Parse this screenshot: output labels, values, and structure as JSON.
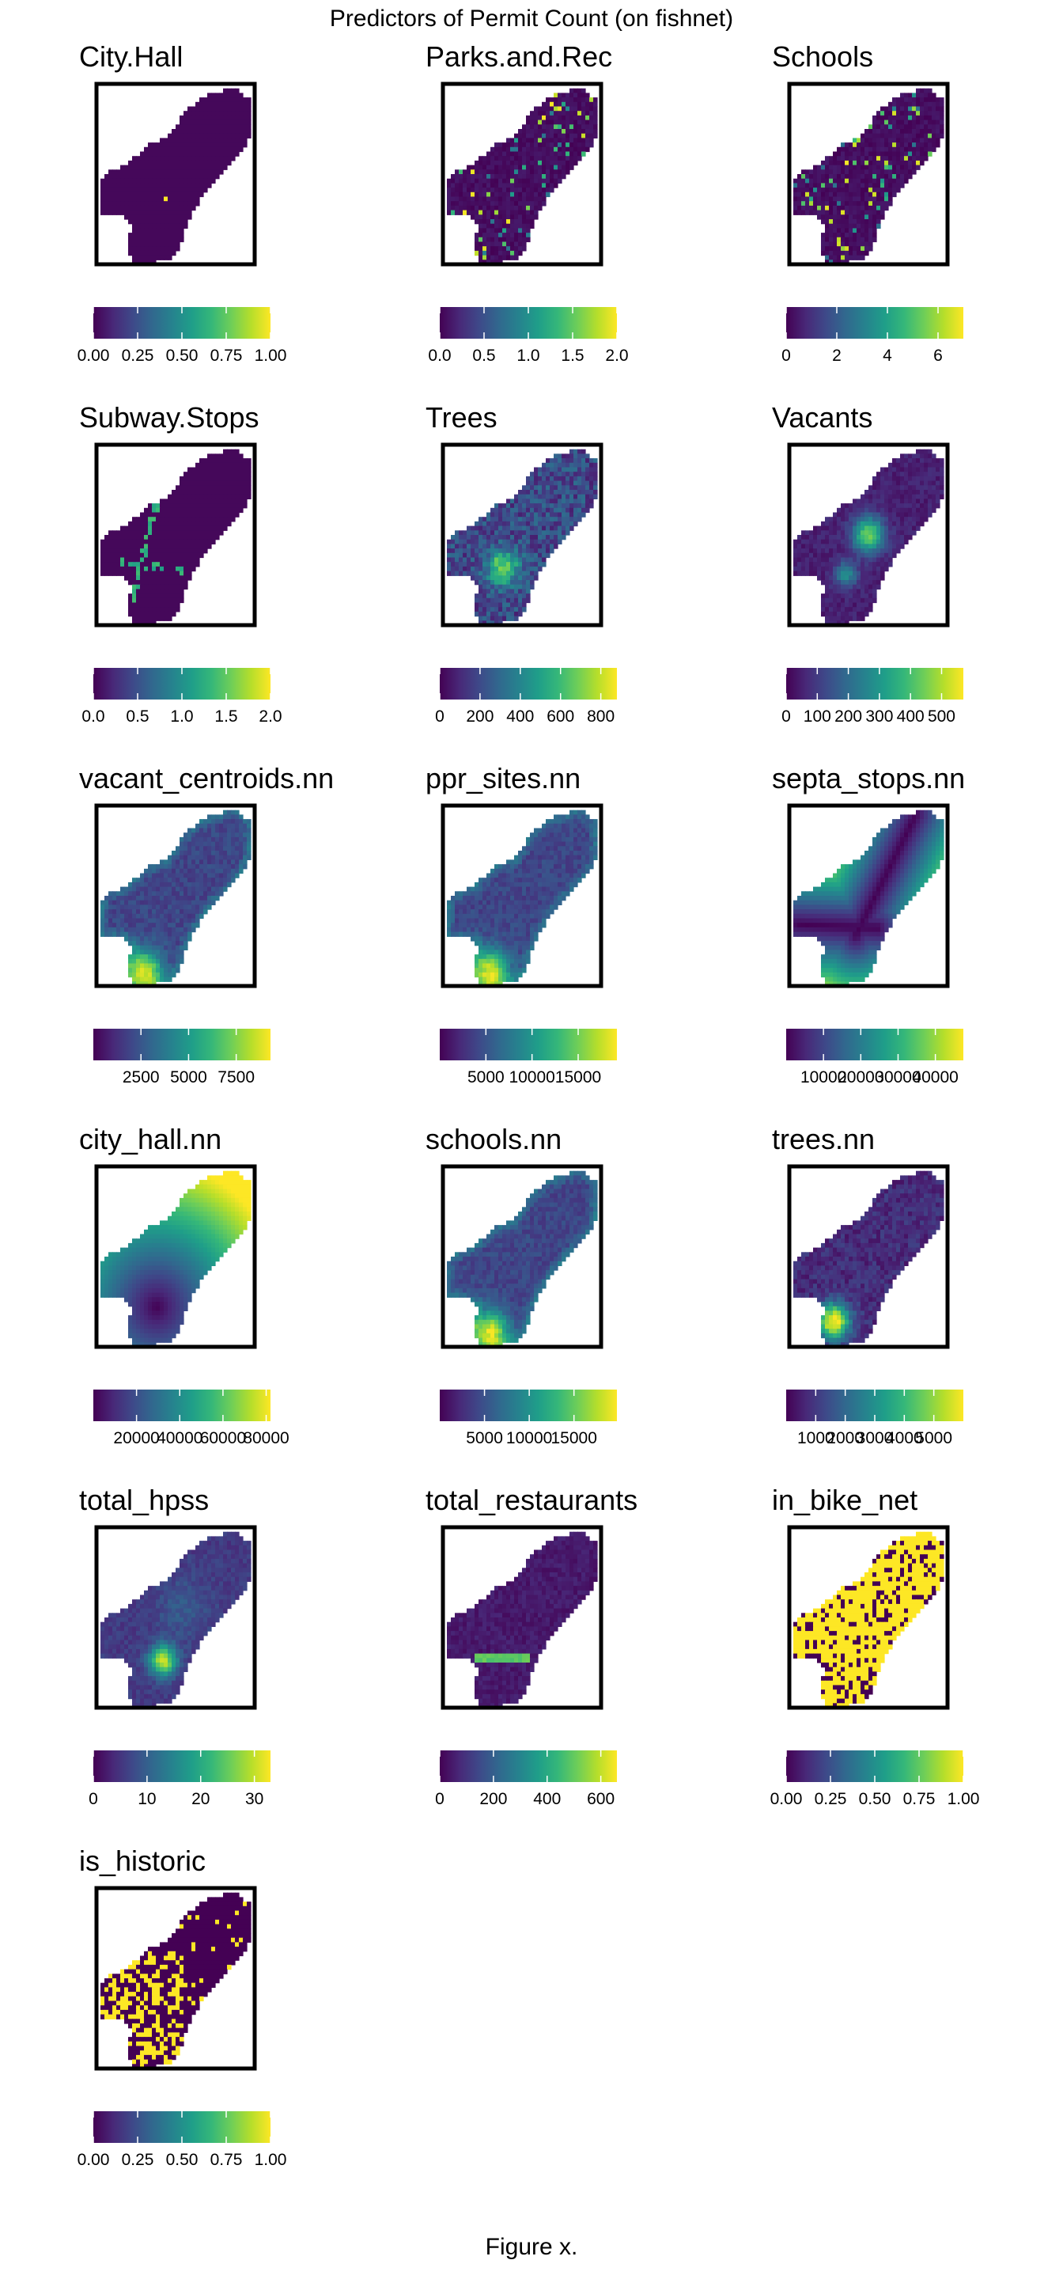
{
  "figure_title": "Predictors of Permit Count (on fishnet)",
  "caption": "Figure x.",
  "colors": {
    "viridis": [
      "#440154",
      "#482878",
      "#3e4989",
      "#31688e",
      "#26828e",
      "#1f9e89",
      "#35b779",
      "#6ece58",
      "#b5de2b",
      "#fde725"
    ],
    "frame": "#000000",
    "background": "#ffffff"
  },
  "chart_data": [
    {
      "type": "heatmap",
      "title": "City.Hall",
      "pattern": "single-cell",
      "legend_ticks": [
        "0.00",
        "0.25",
        "0.50",
        "0.75",
        "1.00"
      ],
      "legend_values": [
        0,
        0.25,
        0.5,
        0.75,
        1.0
      ],
      "range": [
        0,
        1.0
      ]
    },
    {
      "type": "heatmap",
      "title": "Parks.and.Rec",
      "pattern": "sparse",
      "legend_ticks": [
        "0.0",
        "0.5",
        "1.0",
        "1.5",
        "2.0"
      ],
      "legend_values": [
        0,
        0.5,
        1.0,
        1.5,
        2.0
      ],
      "range": [
        0,
        2.0
      ]
    },
    {
      "type": "heatmap",
      "title": "Schools",
      "pattern": "sparse",
      "legend_ticks": [
        "0",
        "2",
        "4",
        "6"
      ],
      "legend_values": [
        0,
        2,
        4,
        6
      ],
      "range": [
        0,
        7
      ]
    },
    {
      "type": "heatmap",
      "title": "Subway.Stops",
      "pattern": "lines",
      "legend_ticks": [
        "0.0",
        "0.5",
        "1.0",
        "1.5",
        "2.0"
      ],
      "legend_values": [
        0,
        0.5,
        1.0,
        1.5,
        2.0
      ],
      "range": [
        0,
        2.0
      ]
    },
    {
      "type": "heatmap",
      "title": "Trees",
      "pattern": "noise-hotspot",
      "legend_ticks": [
        "0",
        "200",
        "400",
        "600",
        "800"
      ],
      "legend_values": [
        0,
        200,
        400,
        600,
        800
      ],
      "range": [
        0,
        880
      ]
    },
    {
      "type": "heatmap",
      "title": "Vacants",
      "pattern": "hotspot",
      "legend_ticks": [
        "0",
        "100",
        "200",
        "300",
        "400",
        "500"
      ],
      "legend_values": [
        0,
        100,
        200,
        300,
        400,
        500
      ],
      "range": [
        0,
        570
      ]
    },
    {
      "type": "heatmap",
      "title": "vacant_centroids.nn",
      "pattern": "nn-edges",
      "legend_ticks": [
        "2500",
        "5000",
        "7500"
      ],
      "legend_values": [
        2500,
        5000,
        7500
      ],
      "range": [
        0,
        9300
      ]
    },
    {
      "type": "heatmap",
      "title": "ppr_sites.nn",
      "pattern": "nn-edges",
      "legend_ticks": [
        "5000",
        "10000",
        "15000"
      ],
      "legend_values": [
        5000,
        10000,
        15000
      ],
      "range": [
        0,
        19200
      ]
    },
    {
      "type": "heatmap",
      "title": "septa_stops.nn",
      "pattern": "distance-lines",
      "legend_ticks": [
        "10000",
        "20000",
        "30000",
        "40000"
      ],
      "legend_values": [
        10000,
        20000,
        30000,
        40000
      ],
      "range": [
        0,
        47500
      ]
    },
    {
      "type": "heatmap",
      "title": "city_hall.nn",
      "pattern": "distance-point",
      "legend_ticks": [
        "20000",
        "40000",
        "60000",
        "80000"
      ],
      "legend_values": [
        20000,
        40000,
        60000,
        80000
      ],
      "range": [
        0,
        82000
      ]
    },
    {
      "type": "heatmap",
      "title": "schools.nn",
      "pattern": "nn-edges",
      "legend_ticks": [
        "5000",
        "10000",
        "15000"
      ],
      "legend_values": [
        5000,
        10000,
        15000
      ],
      "range": [
        0,
        19800
      ]
    },
    {
      "type": "heatmap",
      "title": "trees.nn",
      "pattern": "nn-edges-strong",
      "legend_ticks": [
        "1000",
        "2000",
        "3000",
        "4000",
        "5000"
      ],
      "legend_values": [
        1000,
        2000,
        3000,
        4000,
        5000
      ],
      "range": [
        0,
        6000
      ]
    },
    {
      "type": "heatmap",
      "title": "total_hpss",
      "pattern": "smooth-hotspot",
      "legend_ticks": [
        "0",
        "10",
        "20",
        "30"
      ],
      "legend_values": [
        0,
        10,
        20,
        30
      ],
      "range": [
        0,
        33
      ]
    },
    {
      "type": "heatmap",
      "title": "total_restaurants",
      "pattern": "center-line",
      "legend_ticks": [
        "0",
        "200",
        "400",
        "600"
      ],
      "legend_values": [
        0,
        200,
        400,
        600
      ],
      "range": [
        0,
        660
      ]
    },
    {
      "type": "heatmap",
      "title": "in_bike_net",
      "pattern": "binary-majority",
      "legend_ticks": [
        "0.00",
        "0.25",
        "0.50",
        "0.75",
        "1.00"
      ],
      "legend_values": [
        0,
        0.25,
        0.5,
        0.75,
        1.0
      ],
      "range": [
        0,
        1.0
      ]
    },
    {
      "type": "heatmap",
      "title": "is_historic",
      "pattern": "binary-minority",
      "legend_ticks": [
        "0.00",
        "0.25",
        "0.50",
        "0.75",
        "1.00"
      ],
      "legend_values": [
        0,
        0.25,
        0.5,
        0.75,
        1.0
      ],
      "range": [
        0,
        1.0
      ]
    }
  ]
}
